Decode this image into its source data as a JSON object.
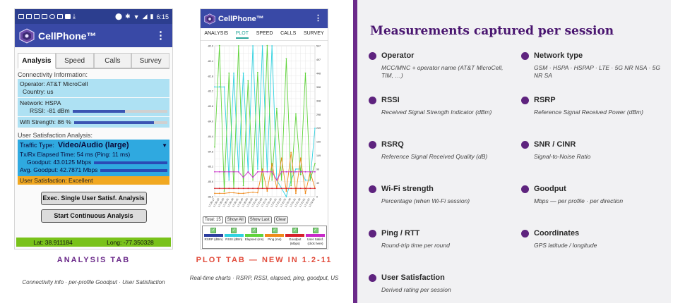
{
  "phone1": {
    "status_time": "6:15",
    "app_title": "CellPhone™",
    "tabs": [
      "Analysis",
      "Speed",
      "Calls",
      "Survey"
    ],
    "connectivity_label": "Connectivity Information:",
    "operator": "Operator: AT&T MicroCell",
    "country": "Country: us",
    "network": "Network: HSPA",
    "rssi": "RSSI: -81 dBm",
    "rssi_fraction": 0.55,
    "wifi": "Wifi Strength: 86 %",
    "wifi_fraction": 0.86,
    "satisfaction_label": "User Satisfaction Analysis:",
    "traffic_type_label": "Traffic Type:",
    "traffic_type_value": "Video/Audio (large)",
    "txrx": "Tx/Rx Elapsed Time: 54 ms  (Ping: 11 ms)",
    "goodput": "Goodput: 43.0125 Mbps",
    "avg_goodput": "Avg. Goodput: 42.7871 Mbps",
    "user_satisfaction": "User Satisfaction: Excellent",
    "button_single": "Exec. Single User Satisf. Analysis",
    "button_continuous": "Start Continuous Analysis",
    "lat": "Lat: 38.911184",
    "long": "Long: -77.350328"
  },
  "caption1": {
    "title": "ANALYSIS TAB",
    "subtitle": "Connectivity info · per-profile Goodput · User Satisfaction",
    "color": "#6b2a8a"
  },
  "phone2": {
    "app_title": "CellPhone™",
    "tabs": [
      "ANALYSIS",
      "PLOT",
      "SPEED",
      "CALLS",
      "SURVEY"
    ],
    "controls": [
      "Total: 15",
      "Show All",
      "Show Last",
      "Clear"
    ],
    "legend": [
      {
        "label": "RSRP (dBm)",
        "color": "#2c3e9f"
      },
      {
        "label": "RSSI (dBm)",
        "color": "#2fd2e0"
      },
      {
        "label": "Elapsed (ms)",
        "color": "#5fd33a"
      },
      {
        "label": "Ping (ms)",
        "color": "#f08a1a"
      },
      {
        "label": "Goodput (Mbps)",
        "color": "#d6202a"
      },
      {
        "label": "User Satisf. (click here)",
        "color": "#c829c8"
      }
    ]
  },
  "caption2": {
    "title": "PLOT TAB — NEW IN 1.2-11",
    "subtitle": "Real-time charts · RSRP, RSSI, elapsed, ping, goodput, US",
    "color": "#e14a3a"
  },
  "chart_data": {
    "type": "line",
    "left_axis_ticks": [
      "-82.0",
      "-82.2",
      "-82.4",
      "-82.6",
      "-82.8",
      "-83.0",
      "-83.2",
      "-83.4",
      "-83.6",
      "-83.8",
      "-84.0",
      "-84.2",
      "-84.4",
      "-84.6",
      "-84.8",
      "-85.0",
      "-85.2",
      "-85.4",
      "-85.6",
      "-85.8",
      "-86.0"
    ],
    "right_axis_ticks": [
      "547",
      "497",
      "448",
      "398",
      "348",
      "298",
      "249",
      "199",
      "149",
      "99",
      "49",
      "0"
    ],
    "x": [
      "17:30:17",
      "17:30:24",
      "17:30:26",
      "17:30:31",
      "17:30:36",
      "17:30:41",
      "17:30:45",
      "17:30:50",
      "17:30:55",
      "17:31:01",
      "17:31:06",
      "17:31:11",
      "17:31:16",
      "17:31:21",
      "17:31:26",
      "17:31:31",
      "17:31:36",
      "17:31:41",
      "17:31:46",
      "17:31:51",
      "17:31:57",
      "17:32:02"
    ],
    "ylim_left": [
      -86.0,
      -82.0
    ],
    "ylim_right": [
      0,
      547
    ],
    "series": [
      {
        "name": "RSSI (dBm)",
        "color": "#2fd2e0",
        "values": [
          398,
          398,
          398,
          60,
          448,
          90,
          448,
          90,
          547,
          100,
          547,
          90,
          547,
          60,
          30,
          0,
          60,
          100,
          100,
          60,
          60,
          248
        ]
      },
      {
        "name": "Elapsed (ms)",
        "color": "#5fd33a",
        "values": [
          180,
          548,
          20,
          448,
          30,
          547,
          40,
          420,
          60,
          450,
          30,
          548,
          60,
          320,
          60,
          500,
          40,
          300,
          80,
          448,
          60,
          120
        ]
      },
      {
        "name": "Ping (ms)",
        "color": "#f08a1a",
        "values": [
          12,
          12,
          12,
          14,
          14,
          12,
          12,
          14,
          16,
          14,
          100,
          20,
          120,
          30,
          140,
          20,
          160,
          12,
          140,
          12,
          90,
          30
        ]
      },
      {
        "name": "User Satisf.",
        "color": "#c829c8",
        "values": [
          90,
          90,
          90,
          90,
          90,
          90,
          70,
          90,
          70,
          90,
          90,
          90,
          90,
          60,
          90,
          90,
          90,
          90,
          90,
          90,
          90,
          90
        ]
      },
      {
        "name": "Goodput (Mbps)",
        "color": "#d6202a",
        "values": [
          30,
          30,
          30,
          30,
          30,
          30,
          30,
          30,
          30,
          30,
          30,
          30,
          30,
          30,
          30,
          30,
          30,
          30,
          30,
          30,
          30,
          30
        ]
      }
    ],
    "grid": true
  },
  "panel": {
    "title": "Measurements captured per session",
    "items": [
      {
        "name": "Operator",
        "desc": "MCC/MNC + operator name (AT&T MicroCell, TIM, …)"
      },
      {
        "name": "Network type",
        "desc": "GSM · HSPA · HSPAP · LTE · 5G NR NSA · 5G NR SA"
      },
      {
        "name": "RSSI",
        "desc": "Received Signal Strength Indicator (dBm)"
      },
      {
        "name": "RSRP",
        "desc": "Reference Signal Received Power (dBm)"
      },
      {
        "name": "RSRQ",
        "desc": "Reference Signal Received Quality (dB)"
      },
      {
        "name": "SNR / CINR",
        "desc": "Signal-to-Noise Ratio"
      },
      {
        "name": "Wi-Fi strength",
        "desc": "Percentage (when Wi-Fi session)"
      },
      {
        "name": "Goodput",
        "desc": "Mbps — per profile · per direction"
      },
      {
        "name": "Ping / RTT",
        "desc": "Round-trip time per round"
      },
      {
        "name": "Coordinates",
        "desc": "GPS latitude / longitude"
      },
      {
        "name": "User Satisfaction",
        "desc": "Derived rating per session"
      }
    ]
  }
}
